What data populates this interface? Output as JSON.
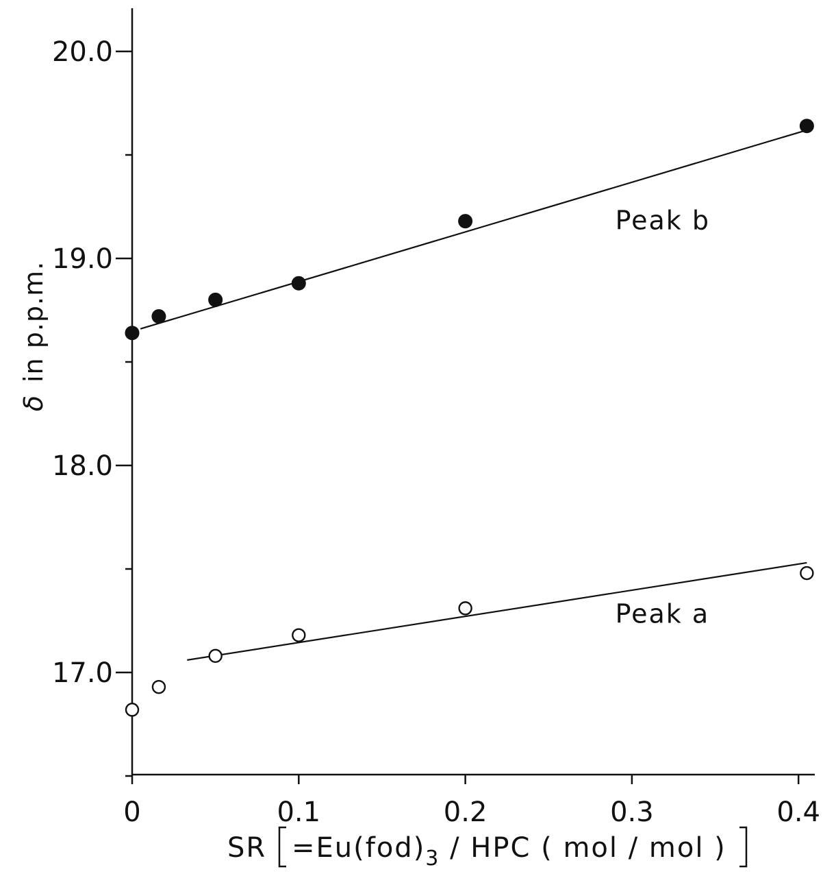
{
  "chart_data": {
    "type": "scatter",
    "title": "",
    "xlabel": "SR [=Eu(fod)₃ / HPC ( mol / mol )]",
    "xlabel_prefix": "SR",
    "xlabel_inner": "=Eu(fod)",
    "xlabel_sub": "3",
    "xlabel_rest": " / HPC ( mol / mol )",
    "ylabel": "δ in p.p.m.",
    "ylabel_symbol": "δ",
    "ylabel_text": "in p.p.m.",
    "xlim": [
      0,
      0.41
    ],
    "ylim": [
      16.5,
      20.2
    ],
    "xticks": [
      {
        "value": 0,
        "label": "0"
      },
      {
        "value": 0.1,
        "label": "0.1"
      },
      {
        "value": 0.2,
        "label": "0.2"
      },
      {
        "value": 0.3,
        "label": "0.3"
      },
      {
        "value": 0.4,
        "label": "0.4"
      }
    ],
    "yticks": [
      {
        "value": 17.0,
        "label": "17.0"
      },
      {
        "value": 18.0,
        "label": "18.0"
      },
      {
        "value": 19.0,
        "label": "19.0"
      },
      {
        "value": 20.0,
        "label": "20.0"
      }
    ],
    "grid": false,
    "series": [
      {
        "name": "Peak b",
        "marker": "filled-circle",
        "x": [
          0,
          0.016,
          0.05,
          0.1,
          0.2,
          0.405
        ],
        "y": [
          18.64,
          18.72,
          18.8,
          18.88,
          19.18,
          19.64
        ],
        "fit": {
          "x0": 0.005,
          "y0": 18.66,
          "x1": 0.405,
          "y1": 19.62
        }
      },
      {
        "name": "Peak a",
        "marker": "open-circle",
        "x": [
          0,
          0.016,
          0.05,
          0.1,
          0.2,
          0.405
        ],
        "y": [
          16.82,
          16.93,
          17.08,
          17.18,
          17.31,
          17.48
        ],
        "fit": {
          "x0": 0.033,
          "y0": 17.06,
          "x1": 0.405,
          "y1": 17.53
        }
      }
    ],
    "annotations": [
      {
        "text": "Peak b",
        "x": 0.29,
        "y": 19.14,
        "series": "Peak b"
      },
      {
        "text": "Peak a",
        "x": 0.29,
        "y": 17.24,
        "series": "Peak a"
      }
    ],
    "colors": {
      "ink": "#111111",
      "background": "#ffffff"
    }
  }
}
